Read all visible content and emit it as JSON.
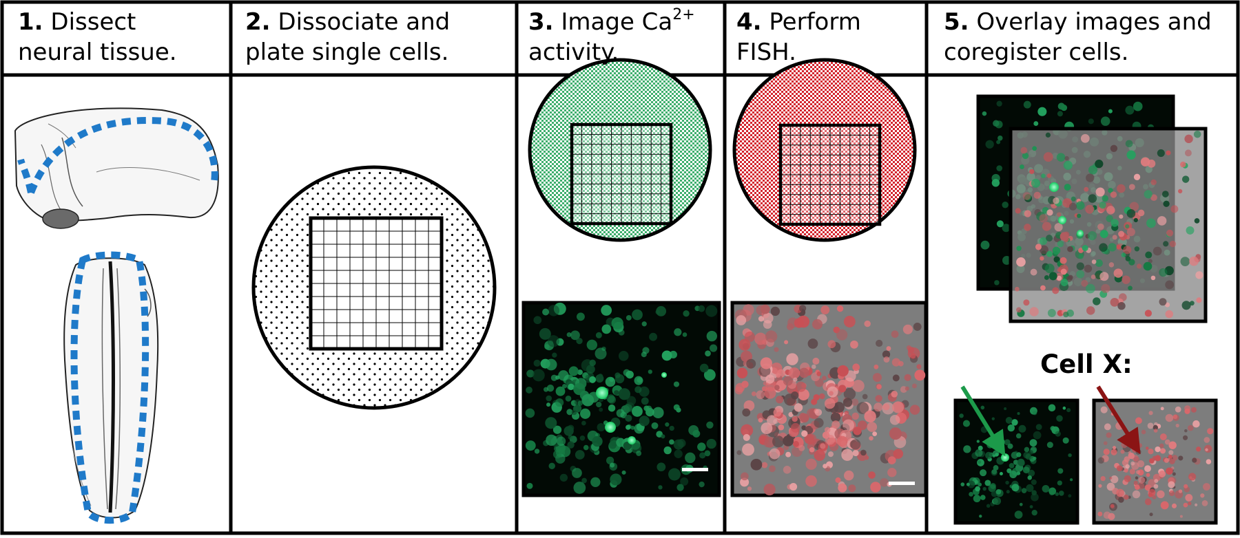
{
  "steps": [
    {
      "number": "1.",
      "line1": "Dissect",
      "line2": "neural tissue."
    },
    {
      "number": "2.",
      "line1": "Dissociate and",
      "line2": "plate single cells."
    },
    {
      "number": "3.",
      "line1": "Image Ca",
      "superscript": "2+",
      "line2": "activity."
    },
    {
      "number": "4.",
      "line1": "Perform",
      "line2": "FISH."
    },
    {
      "number": "5.",
      "line1": "Overlay images and",
      "line2": "coregister cells."
    }
  ],
  "cell_label": "Cell X:",
  "colors": {
    "border": "#000000",
    "dissection_outline": "#1f7ac9",
    "calcium_dish": "#5fc58b",
    "fish_dish": "#e5484f",
    "calcium_image_bg": "#020a05",
    "fish_image_bg": "#7d7d7d",
    "green_arrow": "#1c9a4a",
    "red_arrow": "#8b1414"
  }
}
